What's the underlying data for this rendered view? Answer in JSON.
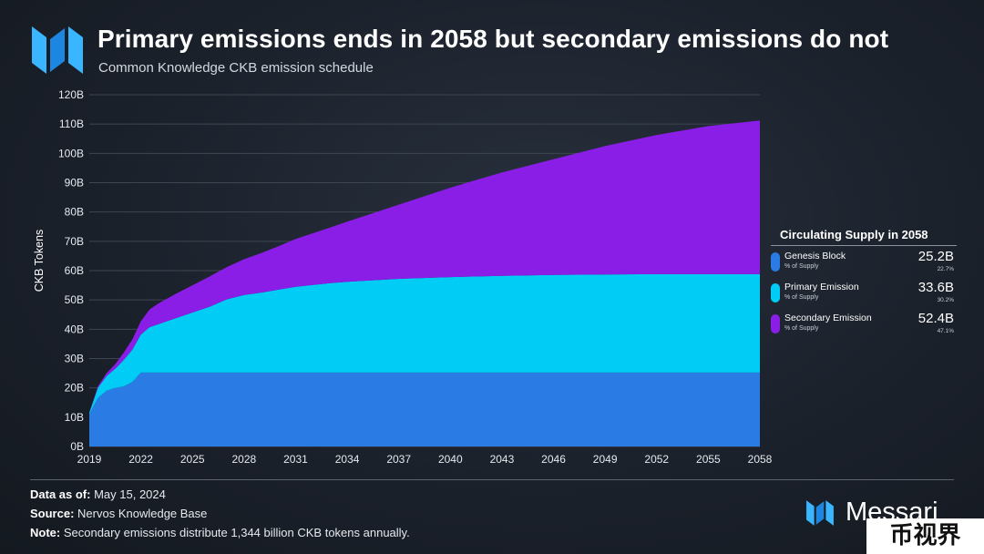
{
  "header": {
    "title": "Primary emissions ends in 2058 but secondary emissions do not",
    "subtitle": "Common Knowledge CKB emission schedule"
  },
  "colors": {
    "genesis": "#2a7be4",
    "primary": "#00ccf5",
    "secondary": "#8a1ee6",
    "background": "#1b212b"
  },
  "chart_data": {
    "type": "area",
    "stacked": true,
    "ylabel": "CKB Tokens",
    "xlabel": "",
    "x_tick_labels": [
      "2019",
      "2022",
      "2025",
      "2028",
      "2031",
      "2034",
      "2037",
      "2040",
      "2043",
      "2046",
      "2049",
      "2052",
      "2055",
      "2058"
    ],
    "y_tick_labels": [
      "0B",
      "10B",
      "20B",
      "30B",
      "40B",
      "50B",
      "60B",
      "70B",
      "80B",
      "90B",
      "100B",
      "110B",
      "120B"
    ],
    "xlim": [
      2019,
      2058
    ],
    "ylim": [
      0,
      120
    ],
    "grid": "horizontal",
    "x": [
      2019,
      2019.5,
      2020,
      2020.5,
      2021,
      2021.5,
      2022,
      2022.5,
      2023,
      2024,
      2025,
      2026,
      2027,
      2028,
      2029,
      2030,
      2031,
      2033,
      2034,
      2037,
      2040,
      2043,
      2046,
      2049,
      2052,
      2055,
      2058
    ],
    "series": [
      {
        "name": "Genesis Block",
        "values": [
          11,
          16.5,
          19,
          20,
          20.5,
          22,
          25.2,
          25.2,
          25.2,
          25.2,
          25.2,
          25.2,
          25.2,
          25.2,
          25.2,
          25.2,
          25.2,
          25.2,
          25.2,
          25.2,
          25.2,
          25.2,
          25.2,
          25.2,
          25.2,
          25.2,
          25.2
        ]
      },
      {
        "name": "Primary Emission",
        "values": [
          0.5,
          3.5,
          5,
          6.5,
          9,
          11,
          13,
          15.5,
          16.5,
          18.5,
          20.5,
          22.5,
          25,
          26.5,
          27.3,
          28.3,
          29.3,
          30.5,
          31,
          32,
          32.6,
          33,
          33.3,
          33.5,
          33.6,
          33.6,
          33.6
        ]
      },
      {
        "name": "Secondary Emission",
        "values": [
          0,
          0.5,
          1,
          1.5,
          2.5,
          3.5,
          4.5,
          6,
          7,
          8.3,
          9.3,
          10.3,
          11,
          12.2,
          13.5,
          14.8,
          16.3,
          19,
          20.5,
          25.3,
          30.5,
          35.3,
          39.5,
          43.8,
          47.5,
          50.5,
          52.4
        ]
      }
    ]
  },
  "legend": {
    "title": "Circulating Supply in 2058",
    "items": [
      {
        "name": "Genesis Block",
        "sub": "% of Supply",
        "value": "25.2B",
        "pct": "22.7%"
      },
      {
        "name": "Primary Emission",
        "sub": "% of Supply",
        "value": "33.6B",
        "pct": "30.2%"
      },
      {
        "name": "Secondary Emission",
        "sub": "% of Supply",
        "value": "52.4B",
        "pct": "47.1%"
      }
    ]
  },
  "footer": {
    "data_as_of_label": "Data as of:",
    "data_as_of_value": "May 15, 2024",
    "source_label": "Source:",
    "source_value": "Nervos Knowledge Base",
    "note_label": "Note:",
    "note_value": "Secondary emissions distribute 1,344 billion CKB tokens annually."
  },
  "brand": {
    "name": "Messari",
    "icon": "messari-logo-icon"
  },
  "watermark": {
    "text": "币视界"
  }
}
